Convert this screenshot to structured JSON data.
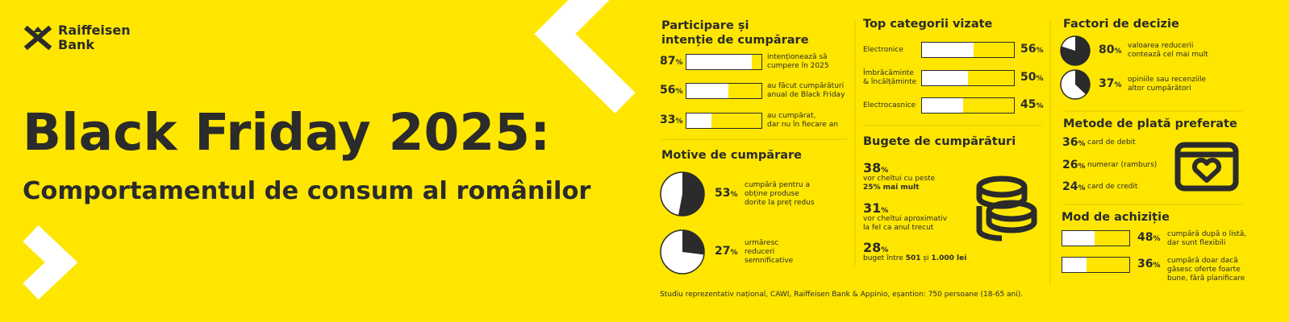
{
  "brand": [
    "Raiffeisen",
    "Bank"
  ],
  "title": "Black Friday 2025:",
  "subtitle": "Comportamentul de consum al românilor",
  "participation": {
    "heading": [
      "Participare și",
      "intenție de cumpărare"
    ],
    "items": [
      {
        "value": 87,
        "unit": "%",
        "text": [
          "intenționează să",
          "cumpere în 2025"
        ]
      },
      {
        "value": 56,
        "unit": "%",
        "text": [
          "au făcut cumpărături",
          "anual de Black Friday"
        ]
      },
      {
        "value": 33,
        "unit": "%",
        "text": [
          "au cumpărat,",
          "dar nu în fiecare an"
        ]
      }
    ]
  },
  "motives": {
    "heading": "Motive de cumpărare",
    "items": [
      {
        "value": 53,
        "unit": "%",
        "text": [
          "cumpără pentru a",
          "obține produse",
          "dorite la preț redus"
        ]
      },
      {
        "value": 27,
        "unit": "%",
        "text": [
          "urmăresc",
          "reduceri",
          "semnificative"
        ]
      }
    ]
  },
  "categories": {
    "heading": "Top categorii vizate",
    "items": [
      {
        "label": [
          "Electronice"
        ],
        "value": 56,
        "unit": "%"
      },
      {
        "label": [
          "Îmbrăcăminte",
          "& încălțăminte"
        ],
        "value": 50,
        "unit": "%"
      },
      {
        "label": [
          "Electrocasnice"
        ],
        "value": 45,
        "unit": "%"
      }
    ]
  },
  "budgets": {
    "heading": "Bugete de cumpărături",
    "items": [
      {
        "value": 38,
        "unit": "%",
        "text": [
          "vor cheltui cu peste",
          [
            {
              "text": "25% mai mult",
              "bold": true
            }
          ]
        ]
      },
      {
        "value": 31,
        "unit": "%",
        "text": [
          "vor cheltui aproximativ",
          "la fel ca anul trecut"
        ]
      },
      {
        "value": 28,
        "unit": "%",
        "text": [
          [
            {
              "text": "buget între "
            },
            {
              "text": "501",
              "bold": true
            },
            {
              "text": " și "
            },
            {
              "text": "1.000 lei",
              "bold": true
            }
          ]
        ]
      }
    ]
  },
  "decision": {
    "heading": "Factori de decizie",
    "items": [
      {
        "value": 80,
        "unit": "%",
        "text": [
          "valoarea reducerii",
          "contează cel mai mult"
        ]
      },
      {
        "value": 37,
        "unit": "%",
        "text": [
          "opiniile sau recenziile",
          "altor cumpărători"
        ]
      }
    ]
  },
  "payment": {
    "heading": "Metode de plată preferate",
    "items": [
      {
        "value": 36,
        "unit": "%",
        "text": [
          "card de debit"
        ]
      },
      {
        "value": 26,
        "unit": "%",
        "text": [
          "numerar (ramburs)"
        ]
      },
      {
        "value": 24,
        "unit": "%",
        "text": [
          "card de credit"
        ]
      }
    ]
  },
  "purchase_mode": {
    "heading": "Mod de achiziție",
    "items": [
      {
        "value": 48,
        "unit": "%",
        "text": [
          "cumpără după o listă,",
          "dar sunt flexibili"
        ]
      },
      {
        "value": 36,
        "unit": "%",
        "text": [
          "cumpără doar dacă",
          "găsesc oferte foarte",
          "bune, fără planificare"
        ]
      }
    ]
  },
  "footer": "Studiu reprezentativ național, CAWI, Raiffeisen Bank & Appinio, eșantion: 750 persoane (18-65 ani)."
}
